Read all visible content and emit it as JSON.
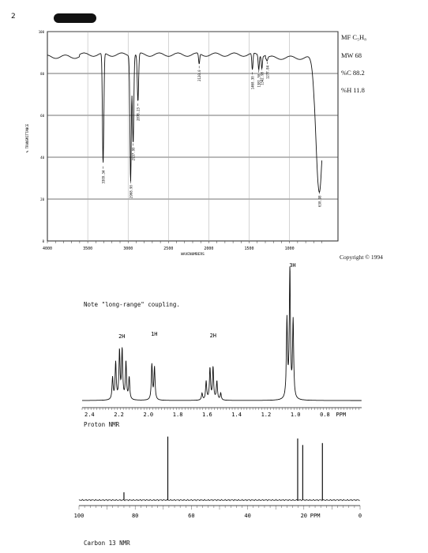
{
  "page_number": "2",
  "formula": {
    "mf": "MF C₅H₈",
    "mw": "MW 68",
    "c": "%C 88.2",
    "h": "%H 11.8"
  },
  "copyright": "Copyright © 1994",
  "note": "Note \"long-range\" coupling.",
  "chart_data": [
    {
      "type": "line",
      "name": "IR",
      "xlabel": "WAVENUMBERS",
      "ylabel": "% TRANSMITTANCE",
      "xlim": [
        4000,
        400
      ],
      "ylim": [
        0,
        100
      ],
      "x_ticks": [
        "4000",
        "3500",
        "3000",
        "2500",
        "2000",
        "1500",
        "1000"
      ],
      "y_ticks": [
        "100",
        "80",
        "60",
        "40",
        "20",
        "0"
      ],
      "grid": true,
      "peaks": [
        {
          "x": 3309.34,
          "y": 36,
          "label": "3309.34"
        },
        {
          "x": 2968.9,
          "y": 29,
          "label": "2968.90"
        },
        {
          "x": 2937.9,
          "y": 47,
          "label": "2937.90"
        },
        {
          "x": 2878.23,
          "y": 66,
          "label": "2878.23"
        },
        {
          "x": 2120.0,
          "y": 84,
          "label": "2120.0"
        },
        {
          "x": 1460.3,
          "y": 81,
          "label": "1460.30"
        },
        {
          "x": 1381.5,
          "y": 82,
          "label": "1381.50"
        },
        {
          "x": 1342.98,
          "y": 83,
          "label": "1342.98"
        },
        {
          "x": 1277.84,
          "y": 86,
          "label": "1277.84"
        },
        {
          "x": 630.98,
          "y": 24,
          "label": "630.98"
        }
      ]
    },
    {
      "type": "line",
      "name": "1H NMR",
      "xlabel": "Proton NMR",
      "unit": "PPM",
      "xlim": [
        2.45,
        0.55
      ],
      "x_ticks": [
        "2.4",
        "2.2",
        "2.0",
        "1.8",
        "1.6",
        "1.4",
        "1.2",
        "1.0",
        "0.8"
      ],
      "multiplets": [
        {
          "center": 2.18,
          "integration": "2H"
        },
        {
          "center": 1.96,
          "integration": "1H"
        },
        {
          "center": 1.56,
          "integration": "2H"
        },
        {
          "center": 1.02,
          "integration": "3H"
        }
      ]
    },
    {
      "type": "line",
      "name": "13C NMR",
      "xlabel": "Carbon 13 NMR",
      "unit": "PPM",
      "xlim": [
        100,
        0
      ],
      "x_ticks": [
        "100",
        "80",
        "60",
        "40",
        "20",
        "0"
      ],
      "peaks": [
        {
          "x": 84.0,
          "height": 0.12
        },
        {
          "x": 68.4,
          "height": 0.98
        },
        {
          "x": 22.2,
          "height": 0.95
        },
        {
          "x": 20.4,
          "height": 0.85
        },
        {
          "x": 13.4,
          "height": 0.88
        }
      ]
    }
  ]
}
